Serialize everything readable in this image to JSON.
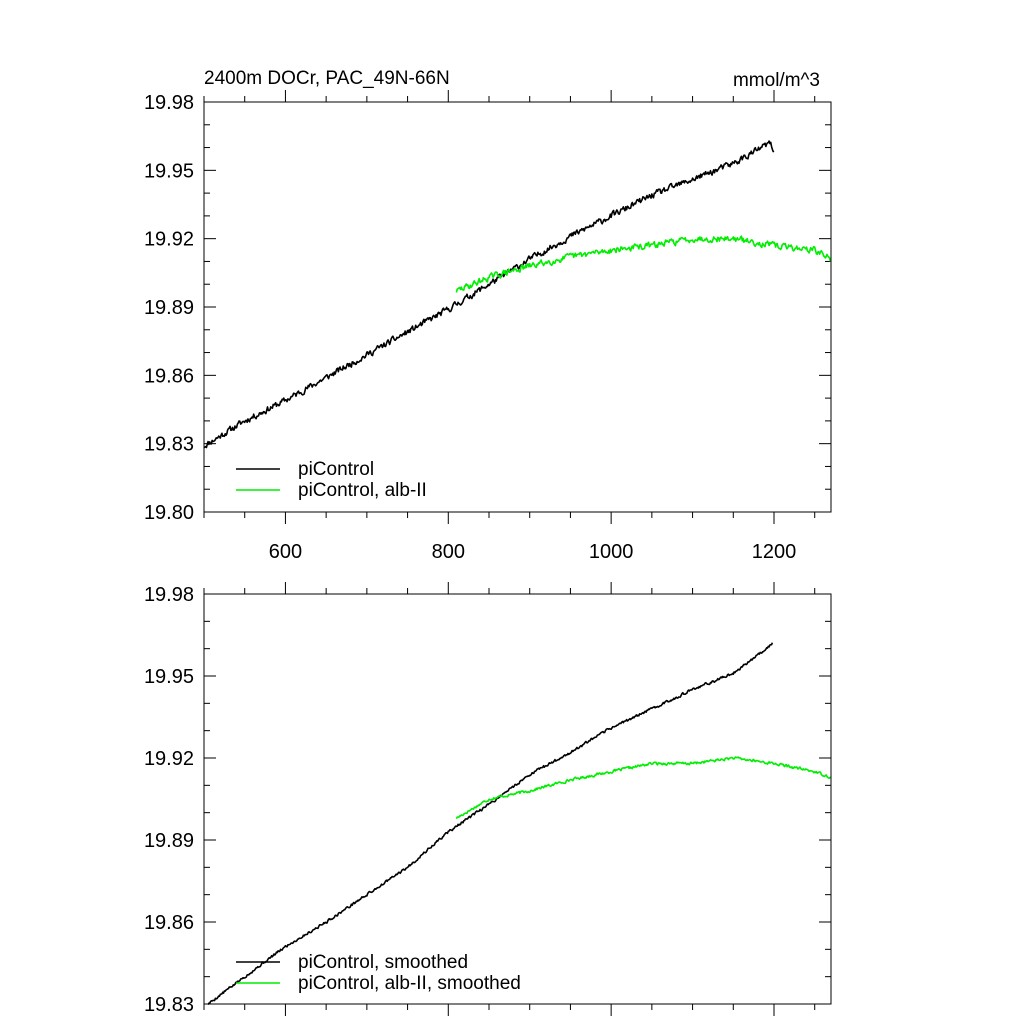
{
  "colors": {
    "piControl": "#000000",
    "alb_II": "#00ee00",
    "frame": "#000000",
    "background": "#ffffff"
  },
  "chart_data": [
    {
      "type": "line",
      "title": "2400m DOCr, PAC_49N-66N",
      "units_label": "mmol/m^3",
      "xlabel": "",
      "ylabel": "",
      "xlim": [
        500,
        1270
      ],
      "ylim": [
        19.8,
        19.98
      ],
      "x_ticks": [
        600,
        800,
        1000,
        1200
      ],
      "x_tick_labels": [
        "600",
        "800",
        "1000",
        "1200"
      ],
      "x_minor_step": 50,
      "y_ticks": [
        19.8,
        19.83,
        19.86,
        19.89,
        19.92,
        19.95,
        19.98
      ],
      "y_tick_labels": [
        "19.80",
        "19.83",
        "19.86",
        "19.89",
        "19.92",
        "19.95",
        "19.98"
      ],
      "y_minor_step": 0.01,
      "grid": false,
      "legend_position": "bottom-left",
      "series": [
        {
          "name": "piControl",
          "color": "#000000",
          "noise": 0.0022,
          "seed": 11,
          "x": [
            500,
            550,
            600,
            650,
            700,
            750,
            800,
            850,
            900,
            950,
            1000,
            1050,
            1100,
            1150,
            1195,
            1200
          ],
          "y": [
            19.829,
            19.84,
            19.849,
            19.859,
            19.869,
            19.879,
            19.889,
            19.9,
            19.911,
            19.921,
            19.93,
            19.939,
            19.946,
            19.953,
            19.962,
            19.958
          ]
        },
        {
          "name": "piControl, alb-II",
          "color": "#00ee00",
          "noise": 0.0022,
          "seed": 29,
          "x": [
            810,
            850,
            900,
            950,
            1000,
            1050,
            1100,
            1150,
            1200,
            1250,
            1270
          ],
          "y": [
            19.897,
            19.903,
            19.908,
            19.912,
            19.915,
            19.917,
            19.92,
            19.92,
            19.917,
            19.915,
            19.911
          ]
        }
      ]
    },
    {
      "type": "line",
      "title": "",
      "xlabel": "",
      "ylabel": "",
      "xlim": [
        500,
        1270
      ],
      "ylim": [
        19.83,
        19.98
      ],
      "x_ticks": [
        600,
        800,
        1000,
        1200
      ],
      "x_tick_labels": [
        "",
        "",
        "",
        ""
      ],
      "x_minor_step": 50,
      "y_ticks": [
        19.83,
        19.86,
        19.89,
        19.92,
        19.95,
        19.98
      ],
      "y_tick_labels": [
        "19.83",
        "19.86",
        "19.89",
        "19.92",
        "19.95",
        "19.98"
      ],
      "y_minor_step": 0.01,
      "grid": false,
      "legend_position": "bottom-left",
      "series": [
        {
          "name": "piControl, smoothed",
          "color": "#000000",
          "noise": 0.0008,
          "seed": 5,
          "x": [
            505,
            550,
            600,
            650,
            700,
            750,
            800,
            850,
            900,
            950,
            1000,
            1050,
            1100,
            1150,
            1190,
            1198
          ],
          "y": [
            19.83,
            19.84,
            19.851,
            19.86,
            19.87,
            19.88,
            19.893,
            19.903,
            19.914,
            19.922,
            19.931,
            19.938,
            19.945,
            19.951,
            19.96,
            19.962
          ]
        },
        {
          "name": "piControl, alb-II, smoothed",
          "color": "#00ee00",
          "noise": 0.0008,
          "seed": 17,
          "x": [
            810,
            850,
            900,
            950,
            1000,
            1050,
            1100,
            1150,
            1200,
            1250,
            1270
          ],
          "y": [
            19.898,
            19.905,
            19.908,
            19.912,
            19.915,
            19.918,
            19.918,
            19.92,
            19.918,
            19.915,
            19.913
          ]
        }
      ]
    }
  ]
}
